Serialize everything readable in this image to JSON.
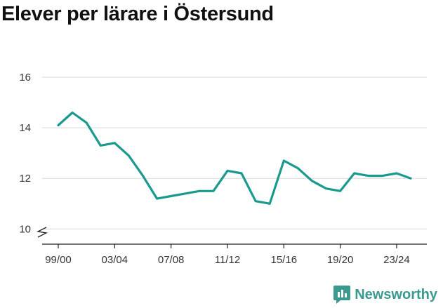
{
  "title": "Elever per lärare i Östersund",
  "brand": {
    "name": "Newsworthy",
    "color": "#3a9a8f",
    "icon": "newsworthy-logo-icon"
  },
  "chart_data": {
    "type": "line",
    "title": "Elever per lärare i Östersund",
    "xlabel": "",
    "ylabel": "",
    "x": [
      "99/00",
      "00/01",
      "01/02",
      "02/03",
      "03/04",
      "04/05",
      "05/06",
      "06/07",
      "07/08",
      "08/09",
      "09/10",
      "10/11",
      "11/12",
      "12/13",
      "13/14",
      "14/15",
      "15/16",
      "16/17",
      "17/18",
      "18/19",
      "19/20",
      "20/21",
      "21/22",
      "22/23",
      "23/24",
      "24/25"
    ],
    "series": [
      {
        "values": [
          14.1,
          14.6,
          14.2,
          13.3,
          13.4,
          12.9,
          12.1,
          11.2,
          11.3,
          11.4,
          11.5,
          11.5,
          12.3,
          12.2,
          11.1,
          11.0,
          12.7,
          12.4,
          11.9,
          11.6,
          11.5,
          12.2,
          12.1,
          12.1,
          12.2,
          12.0
        ],
        "color": "#1a9a8e"
      }
    ],
    "xticks": [
      "99/00",
      "03/04",
      "07/08",
      "11/12",
      "15/16",
      "19/20",
      "23/24"
    ],
    "yticks": [
      10,
      12,
      14,
      16
    ],
    "ylim": [
      9.4,
      16
    ],
    "y_axis_break": true,
    "grid": true,
    "legend": "none"
  }
}
